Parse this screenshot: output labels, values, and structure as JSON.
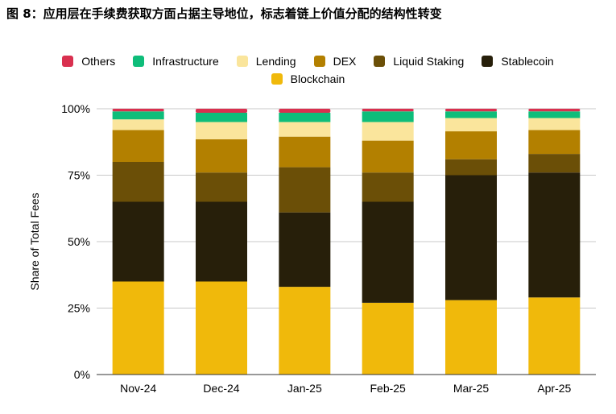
{
  "chart_data": {
    "type": "bar",
    "stacked": true,
    "title": "图 8：应用层在手续费获取方面占据主导地位，标志着链上价值分配的结构性转变",
    "ylabel": "Share of Total Fees",
    "xlabel": "",
    "ylim": [
      0,
      100
    ],
    "yticks": [
      "0%",
      "25%",
      "50%",
      "75%",
      "100%"
    ],
    "grid": true,
    "legend_position": "top",
    "categories": [
      "Nov-24",
      "Dec-24",
      "Jan-25",
      "Feb-25",
      "Mar-25",
      "Apr-25"
    ],
    "series": [
      {
        "name": "Blockchain",
        "color": "#F0B90B",
        "values": [
          35,
          35,
          33,
          27,
          28,
          29
        ]
      },
      {
        "name": "Stablecoin",
        "color": "#271F0A",
        "values": [
          30,
          30,
          28,
          38,
          47,
          47
        ]
      },
      {
        "name": "Liquid Staking",
        "color": "#6B4F07",
        "values": [
          15,
          11,
          17,
          11,
          6,
          7
        ]
      },
      {
        "name": "DEX",
        "color": "#B38000",
        "values": [
          12,
          12.5,
          11.5,
          12,
          10.5,
          9
        ]
      },
      {
        "name": "Lending",
        "color": "#FAE59C",
        "values": [
          4,
          6.5,
          5.5,
          7,
          5,
          4.5
        ]
      },
      {
        "name": "Infrastructure",
        "color": "#0EBD7A",
        "values": [
          3,
          3.5,
          3.5,
          4,
          2.5,
          2.5
        ]
      },
      {
        "name": "Others",
        "color": "#D9304F",
        "values": [
          1,
          1.5,
          1.5,
          1,
          1,
          1
        ]
      }
    ],
    "legend_rows": [
      [
        "Others",
        "Infrastructure",
        "Lending",
        "DEX",
        "Liquid Staking",
        "Stablecoin"
      ],
      [
        "Blockchain"
      ]
    ]
  }
}
